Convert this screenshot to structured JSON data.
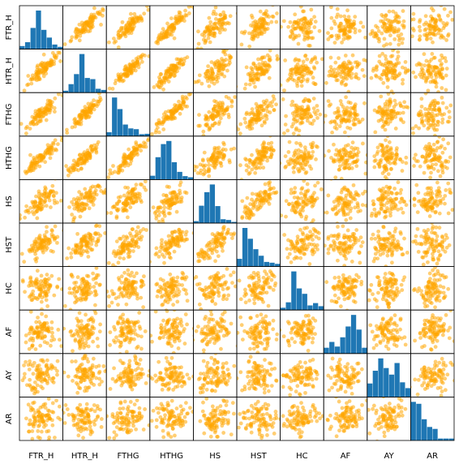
{
  "chart_data": {
    "type": "scatter",
    "variables": [
      "FTR_H",
      "HTR_H",
      "FTHG",
      "HTHG",
      "HS",
      "HST",
      "HC",
      "AF",
      "AY",
      "AR"
    ],
    "diagonal": "histogram",
    "ticks_shown": false,
    "colors": {
      "scatter": "#ffa500",
      "histogram": "#1f77b4"
    },
    "histograms": {
      "FTR_H": [
        0.08,
        0.18,
        0.55,
        1.0,
        0.5,
        0.3,
        0.12,
        0.06
      ],
      "HTR_H": [
        0.05,
        0.22,
        0.48,
        1.0,
        0.38,
        0.35,
        0.1,
        0.07
      ],
      "FTHG": [
        0.1,
        1.0,
        0.7,
        0.3,
        0.2,
        0.18,
        0.05,
        0.06
      ],
      "HTHG": [
        0.1,
        0.58,
        0.92,
        1.0,
        0.45,
        0.2,
        0.09,
        0.06
      ],
      "HS": [
        0.05,
        0.45,
        0.8,
        1.0,
        0.44,
        0.1,
        0.08,
        0.03
      ],
      "HST": [
        0.2,
        1.0,
        0.72,
        0.45,
        0.28,
        0.12,
        0.1,
        0.07
      ],
      "HC": [
        0.06,
        0.2,
        1.0,
        0.56,
        0.42,
        0.12,
        0.18,
        0.1
      ],
      "AF": [
        0.15,
        0.3,
        0.18,
        0.42,
        0.7,
        1.0,
        0.62,
        0.15
      ],
      "AY": [
        0.35,
        0.68,
        1.0,
        0.75,
        0.58,
        0.88,
        0.38,
        0.23
      ],
      "AR": [
        1.0,
        0.95,
        0.55,
        0.35,
        0.3,
        0.05,
        0.05,
        0.05
      ]
    }
  }
}
